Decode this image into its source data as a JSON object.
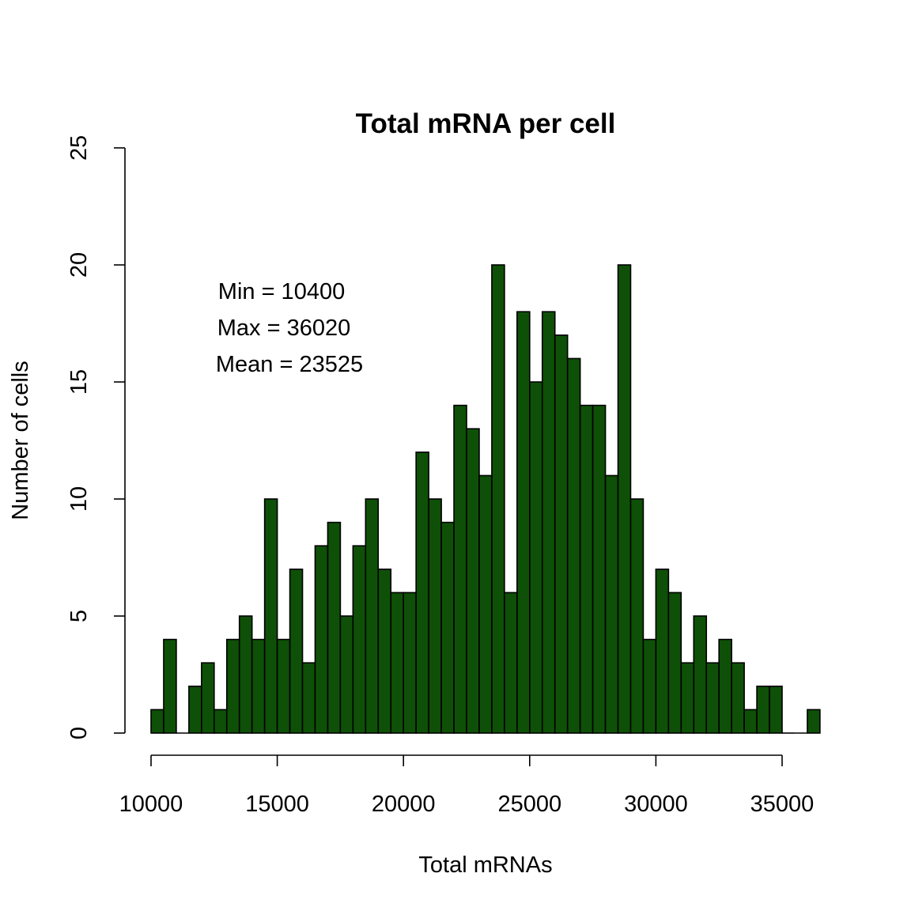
{
  "chart_data": {
    "type": "bar",
    "title": "Total mRNA per cell",
    "xlabel": "Total mRNAs",
    "ylabel": "Number of cells",
    "bin_start": 10000,
    "bin_width": 500,
    "values": [
      1,
      4,
      0,
      2,
      3,
      1,
      4,
      5,
      4,
      10,
      4,
      7,
      3,
      8,
      9,
      5,
      8,
      10,
      7,
      6,
      6,
      12,
      10,
      9,
      14,
      13,
      11,
      20,
      6,
      18,
      15,
      18,
      17,
      16,
      14,
      14,
      11,
      20,
      10,
      4,
      7,
      6,
      3,
      5,
      3,
      4,
      3,
      1,
      2,
      2,
      0,
      0,
      1
    ],
    "xlim": [
      10000,
      36500
    ],
    "ylim": [
      0,
      25
    ],
    "x_ticks": [
      10000,
      15000,
      20000,
      25000,
      30000,
      35000
    ],
    "x_tick_labels": [
      "10000",
      "15000",
      "20000",
      "25000",
      "30000",
      "35000"
    ],
    "y_ticks": [
      0,
      5,
      10,
      15,
      20,
      25
    ],
    "y_tick_labels": [
      "0",
      "5",
      "10",
      "15",
      "20",
      "25"
    ],
    "bar_color": "#0e5007",
    "grid": false,
    "annotations": [
      "Min = 10400",
      "Max = 36020",
      "Mean = 23525"
    ]
  }
}
